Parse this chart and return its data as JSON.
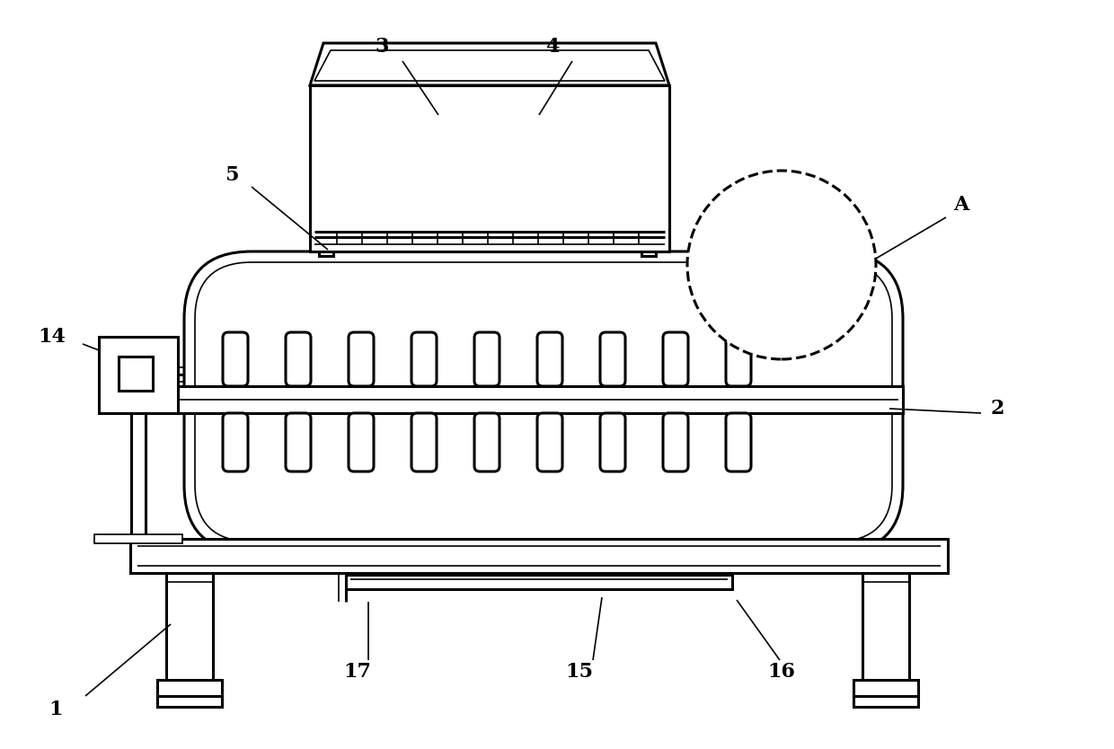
{
  "background_color": "#ffffff",
  "line_color": "#000000",
  "lw": 2.2,
  "tlw": 1.2
}
